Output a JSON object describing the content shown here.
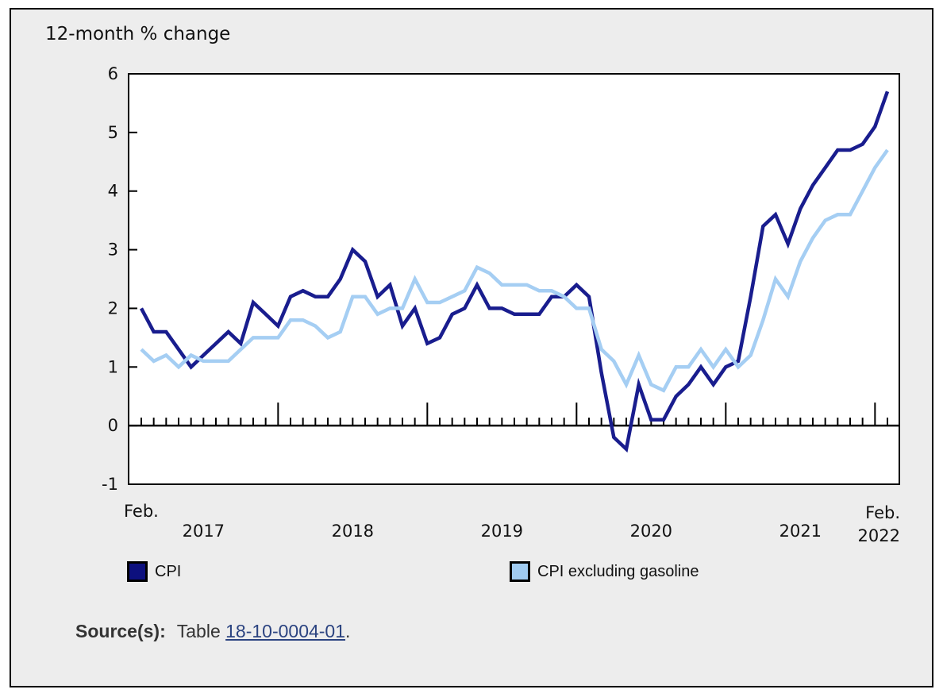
{
  "title": "12-month % change",
  "legend": [
    {
      "label": "CPI",
      "color": "#0d107e"
    },
    {
      "label": "CPI excluding gasoline",
      "color": "#a0cbf1"
    }
  ],
  "source": {
    "prefix": "Source(s):",
    "text": "Table",
    "link": "18-10-0004-01",
    "suffix": "."
  },
  "colors": {
    "canvas_bg": "#ededed",
    "plot_bg": "#ffffff",
    "axis": "#000000",
    "cpi_line": "#191d8e",
    "cpi_ex_gas_line": "#a5cef3",
    "link": "#2b4380"
  },
  "chart_data": {
    "type": "line",
    "title": "12-month % change",
    "x_unit": "month",
    "x_range": "February 2017 to February 2022",
    "x_axis": {
      "first_tick_label": "Feb.",
      "year_labels": [
        "2017",
        "2018",
        "2019",
        "2020",
        "2021"
      ],
      "end_label_line1": "Feb.",
      "end_label_line2": "2022"
    },
    "y_ticks": [
      6,
      5,
      4,
      3,
      2,
      1,
      0,
      -1
    ],
    "ylim": [
      -1,
      6
    ],
    "grid": false,
    "legend_position": "bottom",
    "series": [
      {
        "name": "CPI",
        "color": "#191d8e",
        "values": [
          2.0,
          1.6,
          1.6,
          1.3,
          1.0,
          1.2,
          1.4,
          1.6,
          1.4,
          2.1,
          1.9,
          1.7,
          2.2,
          2.3,
          2.2,
          2.2,
          2.5,
          3.0,
          2.8,
          2.2,
          2.4,
          1.7,
          2.0,
          1.4,
          1.5,
          1.9,
          2.0,
          2.4,
          2.0,
          2.0,
          1.9,
          1.9,
          1.9,
          2.2,
          2.2,
          2.4,
          2.2,
          0.9,
          -0.2,
          -0.4,
          0.7,
          0.1,
          0.1,
          0.5,
          0.7,
          1.0,
          0.7,
          1.0,
          1.1,
          2.2,
          3.4,
          3.6,
          3.1,
          3.7,
          4.1,
          4.4,
          4.7,
          4.7,
          4.8,
          5.1,
          5.7
        ]
      },
      {
        "name": "CPI excluding gasoline",
        "color": "#a5cef3",
        "values": [
          1.3,
          1.1,
          1.2,
          1.0,
          1.2,
          1.1,
          1.1,
          1.1,
          1.3,
          1.5,
          1.5,
          1.5,
          1.8,
          1.8,
          1.7,
          1.5,
          1.6,
          2.2,
          2.2,
          1.9,
          2.0,
          2.0,
          2.5,
          2.1,
          2.1,
          2.2,
          2.3,
          2.7,
          2.6,
          2.4,
          2.4,
          2.4,
          2.3,
          2.3,
          2.2,
          2.0,
          2.0,
          1.3,
          1.1,
          0.7,
          1.2,
          0.7,
          0.6,
          1.0,
          1.0,
          1.3,
          1.0,
          1.3,
          1.0,
          1.2,
          1.8,
          2.5,
          2.2,
          2.8,
          3.2,
          3.5,
          3.6,
          3.6,
          4.0,
          4.4,
          4.7
        ]
      }
    ]
  }
}
